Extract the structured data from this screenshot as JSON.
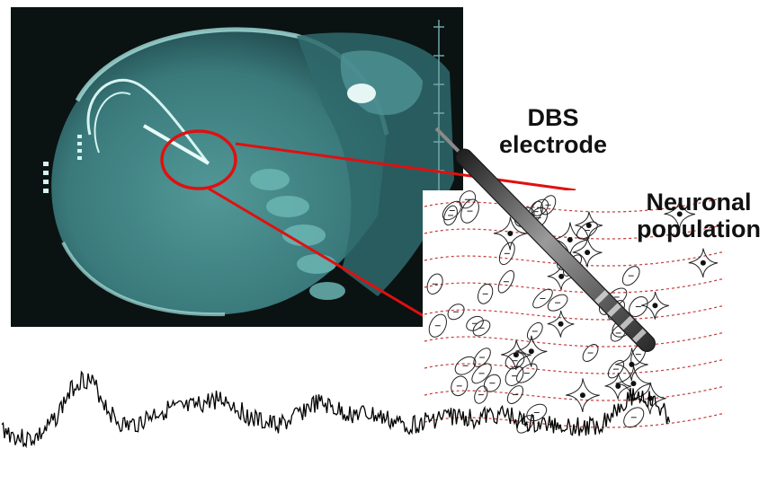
{
  "labels": {
    "electrode_line1": "DBS",
    "electrode_line2": "electrode",
    "population_line1": "Neuronal",
    "population_line2": "population"
  },
  "colors": {
    "xray_background": "#0b1212",
    "xray_bone": "#7fc9c6",
    "highlight": "#e01010",
    "electrode": "#3a3a3a",
    "field_lines": "#c43a3a",
    "signal": "#000000",
    "label_text": "#111111"
  },
  "icons": {
    "xray": "skull-xray-image",
    "highlight": "red-circle-highlight",
    "electrode": "dbs-electrode-probe",
    "population": "neuron-population-schematic",
    "signal": "lfp-signal-trace"
  }
}
